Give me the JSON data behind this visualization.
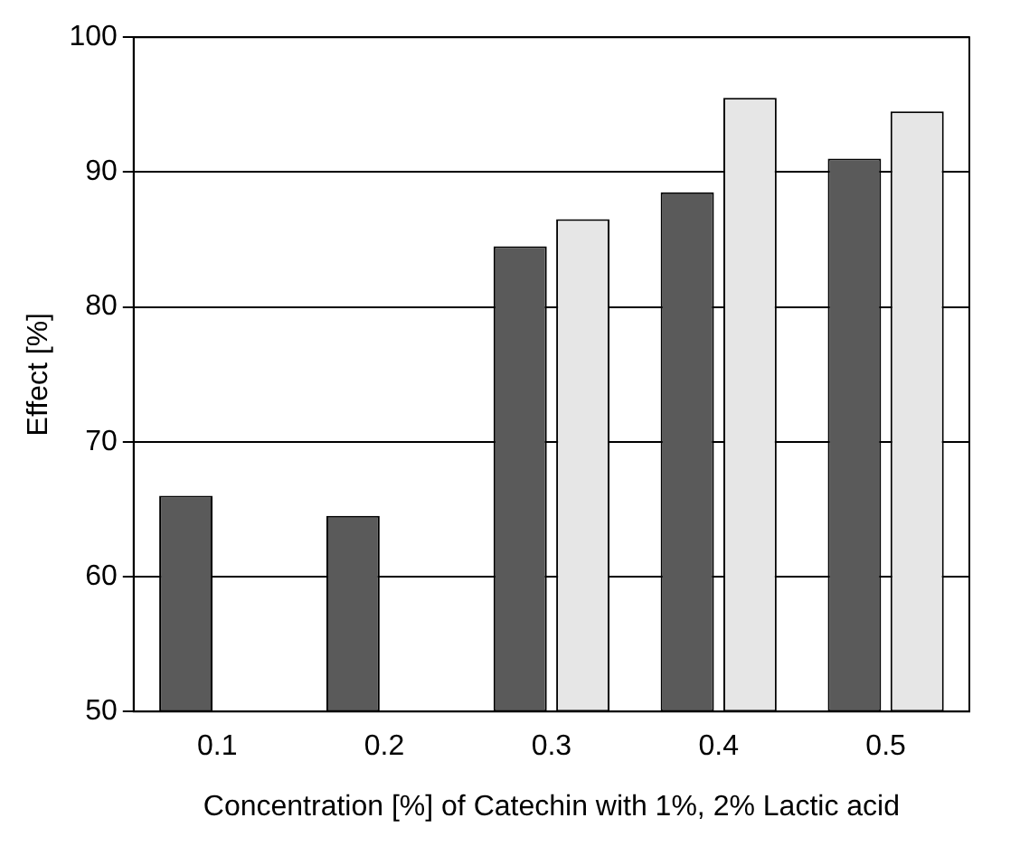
{
  "chart_data": {
    "type": "bar",
    "ylabel": "Effect [%]",
    "xlabel": "Concentration [%] of Catechin with 1%, 2% Lactic acid",
    "categories": [
      "0.1",
      "0.2",
      "0.3",
      "0.4",
      "0.5"
    ],
    "series": [
      {
        "color": "#5a5a5a",
        "values": [
          66,
          64.5,
          84.5,
          88.5,
          91
        ]
      },
      {
        "color": "#e6e6e6",
        "values": [
          50,
          50,
          86.5,
          95.5,
          94.5
        ]
      }
    ],
    "ylim": [
      50,
      100
    ],
    "yticks": [
      50,
      60,
      70,
      80,
      90,
      100
    ],
    "grid": "y",
    "legend": false
  }
}
